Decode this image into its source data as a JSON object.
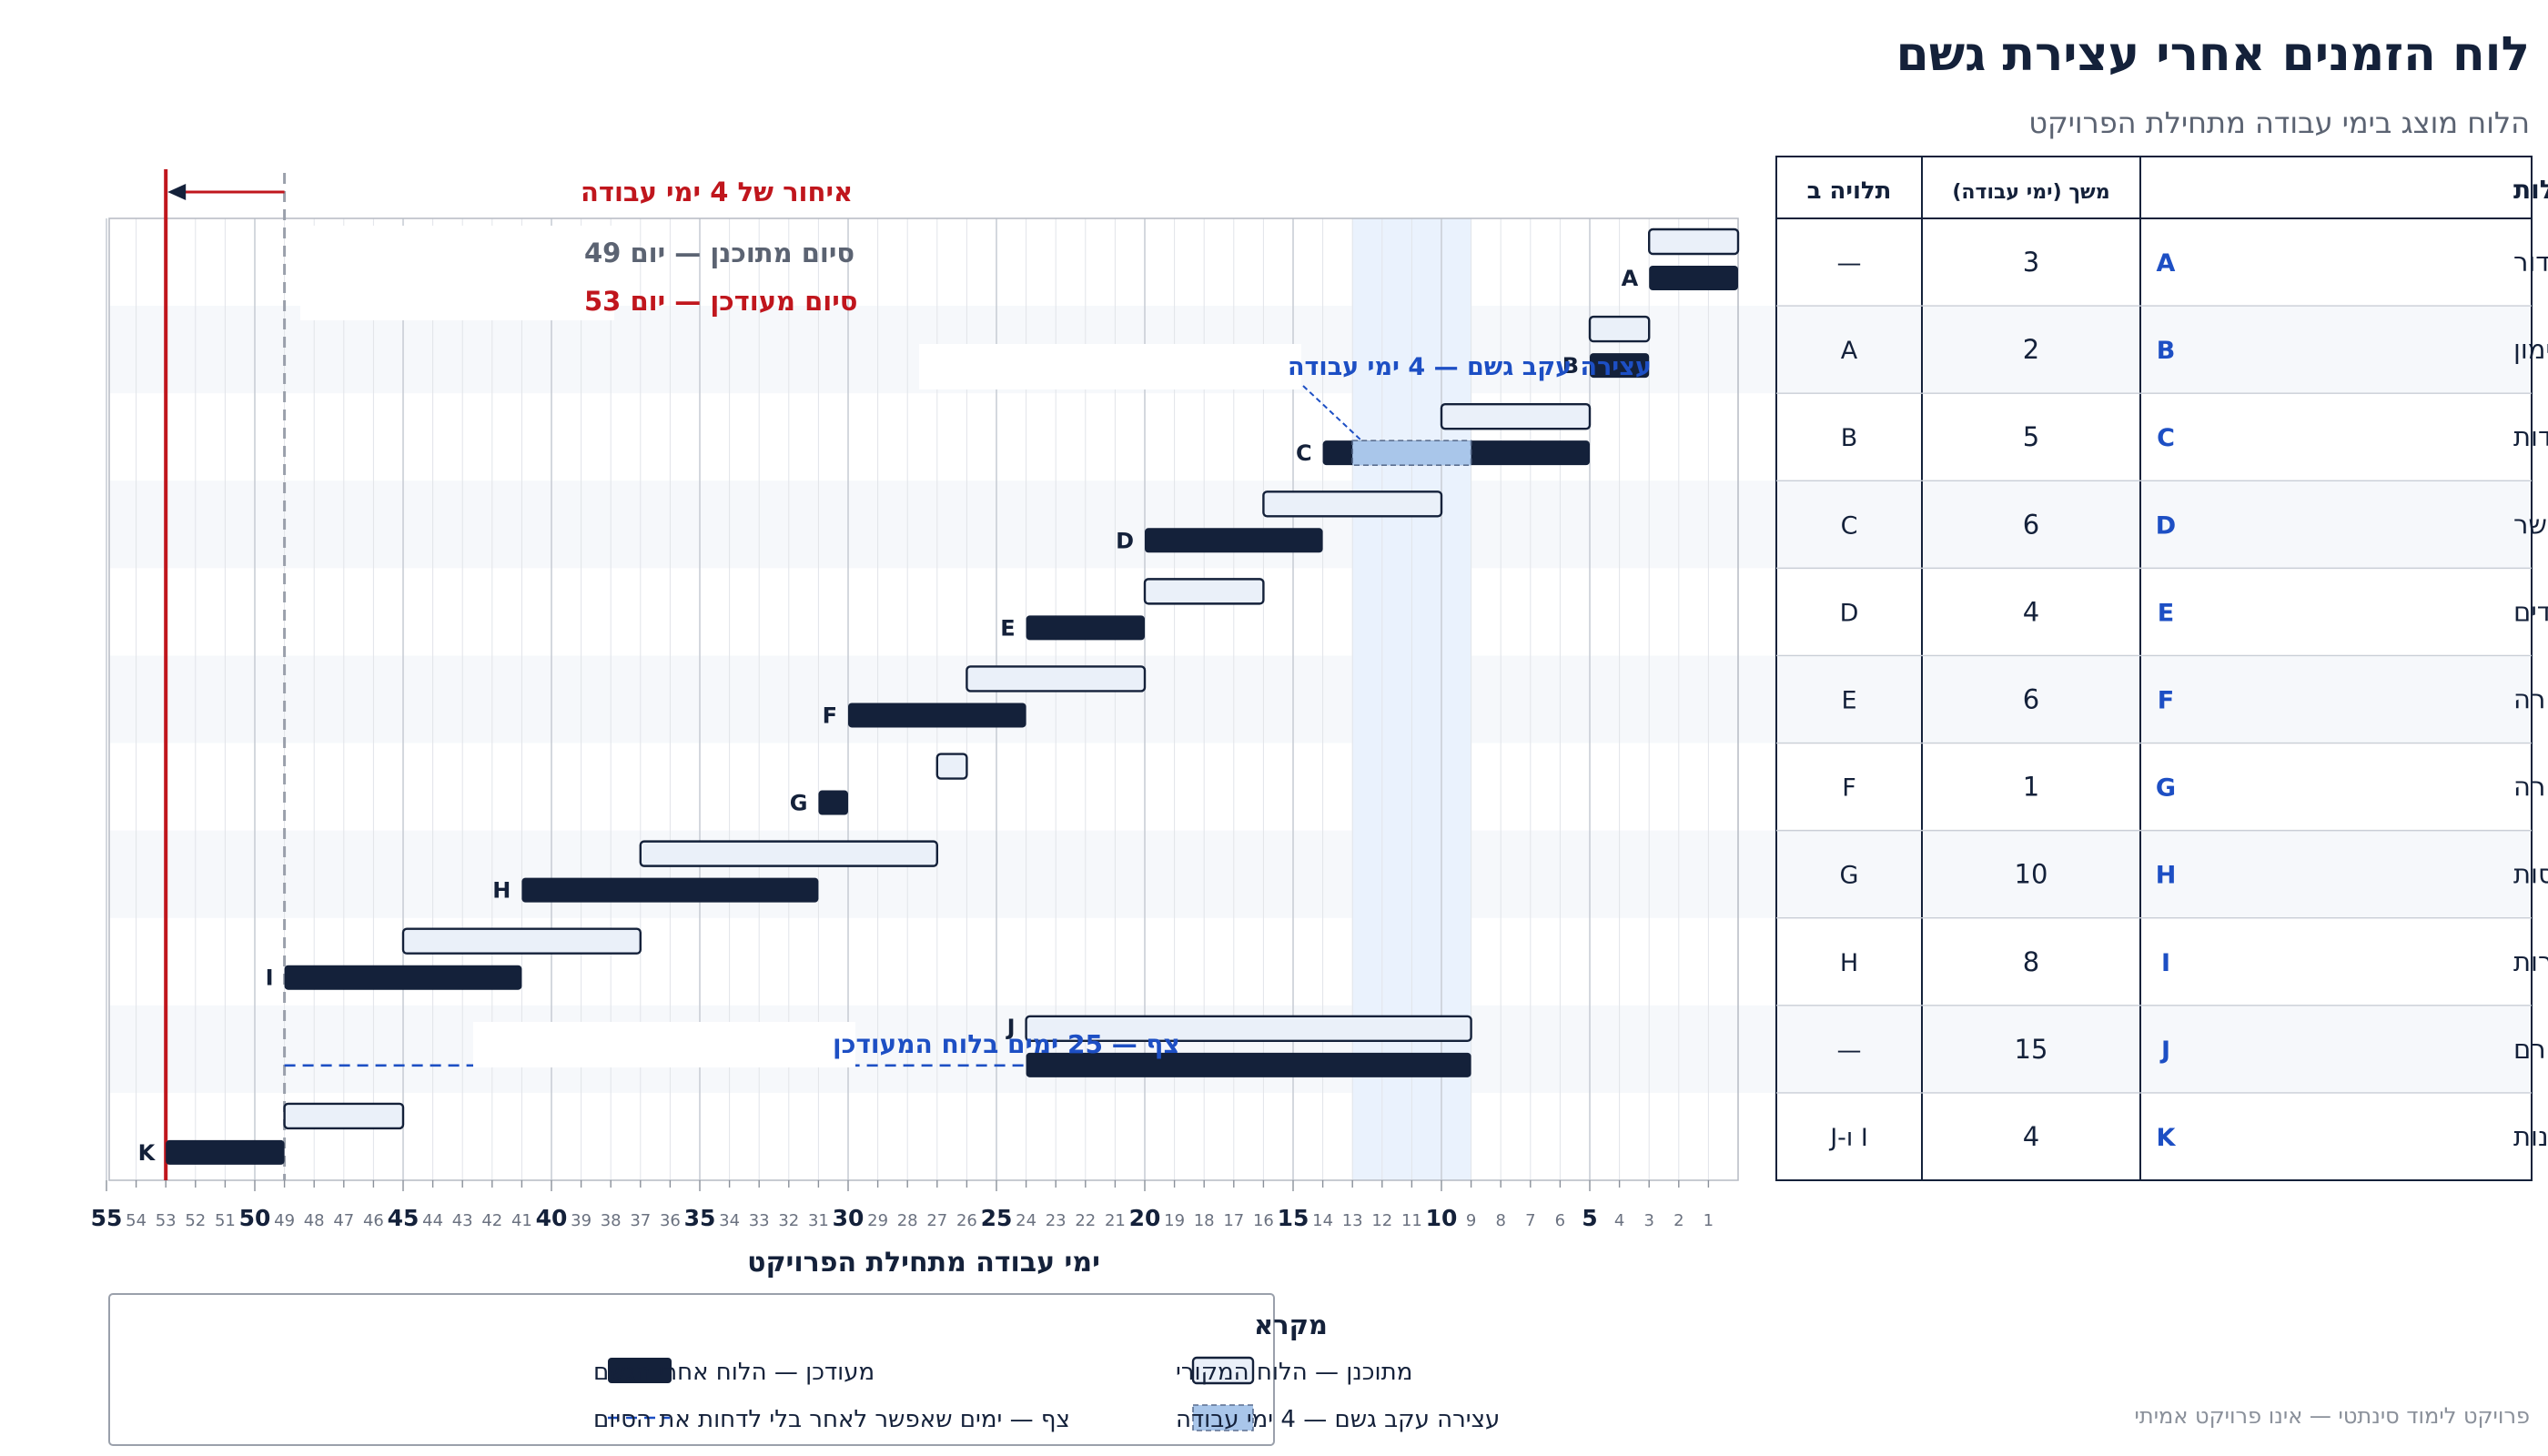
{
  "header": {
    "title": "לוח הזמנים אחרי עצירת גשם",
    "subtitle": "הלוח מוצג בימי עבודה מתחילת הפרויקט"
  },
  "footer_note": "פרויקט לימוד סינתטי — אינו פרויקט אמיתי",
  "table": {
    "headers": {
      "activity": "פעילות",
      "duration": "משך (ימי עבודה)",
      "depends": "תלויה ב"
    },
    "rows": [
      {
        "id": "A",
        "name": "הכנת אתר וגידור",
        "duration": 3,
        "depends": "—"
      },
      {
        "id": "B",
        "name": "מתווה וסימון",
        "duration": 2,
        "depends": "A"
      },
      {
        "id": "C",
        "name": "חפירה ליסודות",
        "duration": 5,
        "depends": "B"
      },
      {
        "id": "D",
        "name": "יסודות וקורות קשר",
        "duration": 6,
        "depends": "C"
      },
      {
        "id": "E",
        "name": "עמודים",
        "duration": 4,
        "depends": "D"
      },
      {
        "id": "F",
        "name": "טפסות וזיון תקרה",
        "duration": 6,
        "depends": "E"
      },
      {
        "id": "G",
        "name": "יציקת תקרה",
        "duration": 1,
        "depends": "F"
      },
      {
        "id": "H",
        "name": "אשפרה ופירוק טפסות",
        "duration": 10,
        "depends": "G"
      },
      {
        "id": "I",
        "name": "בניית קירות",
        "duration": 8,
        "depends": "H"
      },
      {
        "id": "J",
        "name": "הזמנת חלונות וייצורם",
        "duration": 15,
        "depends": "—"
      },
      {
        "id": "K",
        "name": "התקנת חלונות",
        "duration": 4,
        "depends": "I ו-J"
      }
    ]
  },
  "chart_data": {
    "type": "gantt",
    "xlabel": "ימי עבודה מתחילת הפרויקט",
    "x_range": [
      1,
      55
    ],
    "x_direction": "right-to-left",
    "x_ticks_major": [
      5,
      10,
      15,
      20,
      25,
      30,
      35,
      40,
      45,
      50,
      55
    ],
    "highlight_days": [
      10,
      13
    ],
    "tasks": [
      {
        "id": "A",
        "planned": [
          1,
          3
        ],
        "updated": [
          1,
          3
        ]
      },
      {
        "id": "B",
        "planned": [
          4,
          5
        ],
        "updated": [
          4,
          5
        ]
      },
      {
        "id": "C",
        "planned": [
          6,
          10
        ],
        "updated": [
          6,
          14
        ],
        "pause": [
          10,
          13
        ]
      },
      {
        "id": "D",
        "planned": [
          11,
          16
        ],
        "updated": [
          15,
          20
        ]
      },
      {
        "id": "E",
        "planned": [
          17,
          20
        ],
        "updated": [
          21,
          24
        ]
      },
      {
        "id": "F",
        "planned": [
          21,
          26
        ],
        "updated": [
          25,
          30
        ]
      },
      {
        "id": "G",
        "planned": [
          27,
          27
        ],
        "updated": [
          31,
          31
        ]
      },
      {
        "id": "H",
        "planned": [
          28,
          37
        ],
        "updated": [
          32,
          41
        ]
      },
      {
        "id": "I",
        "planned": [
          38,
          45
        ],
        "updated": [
          42,
          49
        ]
      },
      {
        "id": "J",
        "planned": [
          10,
          24
        ],
        "updated": [
          10,
          24
        ]
      },
      {
        "id": "K",
        "planned": [
          46,
          49
        ],
        "updated": [
          50,
          53
        ]
      }
    ],
    "planned_finish": 49,
    "updated_finish": 53,
    "annotations": {
      "delay": "איחור של 4 ימי עבודה",
      "planned_finish": "סיום מתוכנן — יום 49",
      "updated_finish": "סיום מעודכן — יום 53",
      "pause": "עצירה עקב גשם — 4 ימי עבודה",
      "slack": "צף — 25 ימים בלוח המעודכן"
    },
    "legend": {
      "title": "מקרא",
      "items": [
        {
          "key": "planned",
          "label": "מתוכנן — הלוח המקורי"
        },
        {
          "key": "updated",
          "label": "מעודכן — הלוח אחרי הגשם"
        },
        {
          "key": "pause",
          "label": "עצירה עקב גשם — 4 ימי עבודה"
        },
        {
          "key": "slack",
          "label": "צף — ימים שאפשר לאחר בלי לדחות את הסיום"
        }
      ]
    },
    "colors": {
      "planned_fill": "#eaf0f9",
      "updated_fill": "#14213a",
      "pause_fill": "#a9c6ea",
      "highlight_band": "#eaf2fd",
      "accent_blue": "#1d4fc4",
      "accent_red": "#c0161d",
      "grey_text": "#5b6372"
    }
  }
}
